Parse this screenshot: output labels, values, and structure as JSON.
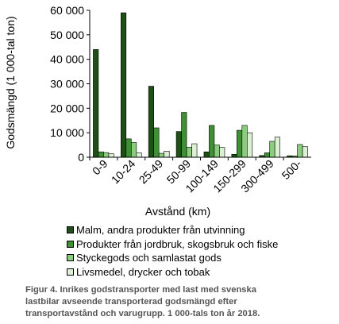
{
  "chart_data": {
    "type": "bar",
    "ylabel": "Godsmängd (1 000-tal ton)",
    "xlabel": "Avstånd (km)",
    "ylim": [
      0,
      60000
    ],
    "yticks": [
      "0",
      "10 000",
      "20 000",
      "30 000",
      "40 000",
      "50 000",
      "60 000"
    ],
    "ytick_values": [
      0,
      10000,
      20000,
      30000,
      40000,
      50000,
      60000
    ],
    "grid": false,
    "legend_position": "bottom",
    "categories": [
      "0-9",
      "10-24",
      "25-49",
      "50-99",
      "100-149",
      "150-299",
      "300-499",
      "500-"
    ],
    "series": [
      {
        "name": "Malm, andra produkter från utvinning",
        "color": "#1e5016",
        "values": [
          44000,
          59000,
          29000,
          10500,
          2200,
          1200,
          700,
          600
        ]
      },
      {
        "name": "Produkter från jordbruk, skogsbruk och fiske",
        "color": "#3f8f36",
        "values": [
          2200,
          7500,
          12000,
          18300,
          13000,
          11000,
          1800,
          500
        ]
      },
      {
        "name": "Styckegods och samlastat gods",
        "color": "#8ccc7e",
        "values": [
          1900,
          6000,
          1600,
          4100,
          5000,
          13000,
          6500,
          5200
        ]
      },
      {
        "name": "Livsmedel, drycker och tobak",
        "color": "#dcf0d4",
        "values": [
          1400,
          1800,
          2500,
          5500,
          4000,
          10000,
          8200,
          4300
        ]
      }
    ]
  },
  "caption": {
    "lines": [
      "Figur 4. Inrikes godstransporter med last med svenska",
      "lastbilar avseende transporterad godsmängd efter",
      "transportavstånd och varugrupp. 1 000-tals ton år 2018."
    ]
  }
}
